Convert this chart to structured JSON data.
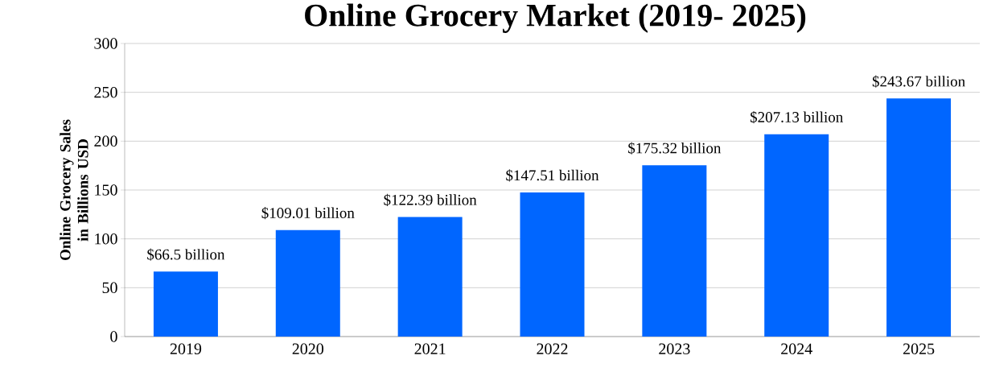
{
  "chart_data": {
    "type": "bar",
    "title": "Online Grocery Market (2019- 2025)",
    "ylabel": "Online Grocery Sales in Billions USD",
    "categories": [
      "2019",
      "2020",
      "2021",
      "2022",
      "2023",
      "2024",
      "2025"
    ],
    "values": [
      66.5,
      109.01,
      122.39,
      147.51,
      175.32,
      207.13,
      243.67
    ],
    "value_labels": [
      "$66.5 billion",
      "$109.01 billion",
      "$122.39 billion",
      "$147.51 billion",
      "$175.32 billion",
      "$207.13 billion",
      "$243.67 billion"
    ],
    "color": "#0066ff",
    "ylim": [
      0,
      300
    ],
    "yticks": [
      0,
      50,
      100,
      150,
      200,
      250,
      300
    ],
    "grid": "y"
  }
}
